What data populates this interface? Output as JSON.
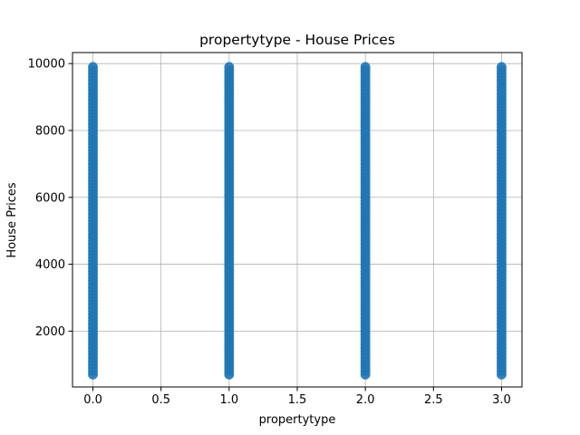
{
  "chart_data": {
    "type": "scatter",
    "title": "propertytype - House Prices",
    "xlabel": "propertytype",
    "ylabel": "House Prices",
    "xlim": [
      -0.15,
      3.15
    ],
    "ylim": [
      330,
      10330
    ],
    "xticks": [
      0.0,
      0.5,
      1.0,
      1.5,
      2.0,
      2.5,
      3.0
    ],
    "xtick_labels": [
      "0.0",
      "0.5",
      "1.0",
      "1.5",
      "2.0",
      "2.5",
      "3.0"
    ],
    "yticks": [
      2000,
      4000,
      6000,
      8000,
      10000
    ],
    "ytick_labels": [
      "2000",
      "4000",
      "6000",
      "8000",
      "10000"
    ],
    "grid": true,
    "series": [
      {
        "color": "#1f77b4",
        "x_values": [
          0,
          1,
          2,
          3
        ],
        "y_min": 700,
        "y_max": 9900,
        "y_step": 100
      }
    ]
  }
}
